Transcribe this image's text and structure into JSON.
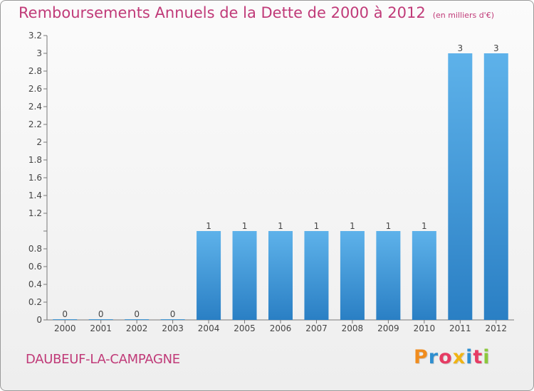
{
  "header": {
    "title": "Remboursements Annuels de la Dette de 2000 à 2012",
    "unit": "(en milliers d'€)"
  },
  "footer": {
    "commune": "DAUBEUF-LA-CAMPAGNE",
    "logo_letters": [
      "P",
      "r",
      "o",
      "x",
      "i",
      "t",
      "i"
    ],
    "logo_colors": [
      "#f08c1e",
      "#2f8fd0",
      "#e63c64",
      "#f0b414",
      "#2f8fd0",
      "#e63c64",
      "#8cc83c"
    ]
  },
  "colors": {
    "bar_top": "#5eb2ea",
    "bar_bottom": "#2a7fc4",
    "title": "#c03a78"
  },
  "chart_data": {
    "type": "bar",
    "categories": [
      "2000",
      "2001",
      "2002",
      "2003",
      "2004",
      "2005",
      "2006",
      "2007",
      "2008",
      "2009",
      "2010",
      "2011",
      "2012"
    ],
    "values": [
      0,
      0,
      0,
      0,
      1,
      1,
      1,
      1,
      1,
      1,
      1,
      3,
      3
    ],
    "data_labels": [
      "0",
      "0",
      "0",
      "0",
      "1",
      "1",
      "1",
      "1",
      "1",
      "1",
      "1",
      "3",
      "3"
    ],
    "y_ticks": [
      {
        "value": 0,
        "label": "0"
      },
      {
        "value": 0.2,
        "label": "0.2"
      },
      {
        "value": 0.4,
        "label": "0.4"
      },
      {
        "value": 0.6,
        "label": "0.6"
      },
      {
        "value": 0.8,
        "label": "0.8"
      },
      {
        "value": 1.2,
        "label": "1.2"
      },
      {
        "value": 1.4,
        "label": "1.4"
      },
      {
        "value": 1.6,
        "label": "1.6"
      },
      {
        "value": 1.8,
        "label": "1.8"
      },
      {
        "value": 2,
        "label": "2"
      },
      {
        "value": 2.2,
        "label": "2.2"
      },
      {
        "value": 2.4,
        "label": "2.4"
      },
      {
        "value": 2.6,
        "label": "2.6"
      },
      {
        "value": 2.8,
        "label": "2.8"
      },
      {
        "value": 3,
        "label": "3"
      },
      {
        "value": 3.2,
        "label": "3.2"
      }
    ],
    "ylim": [
      0,
      3.2
    ],
    "grid": false,
    "title": "Remboursements Annuels de la Dette de 2000 à 2012",
    "ylabel": "(en milliers d'€)",
    "xlabel": ""
  }
}
